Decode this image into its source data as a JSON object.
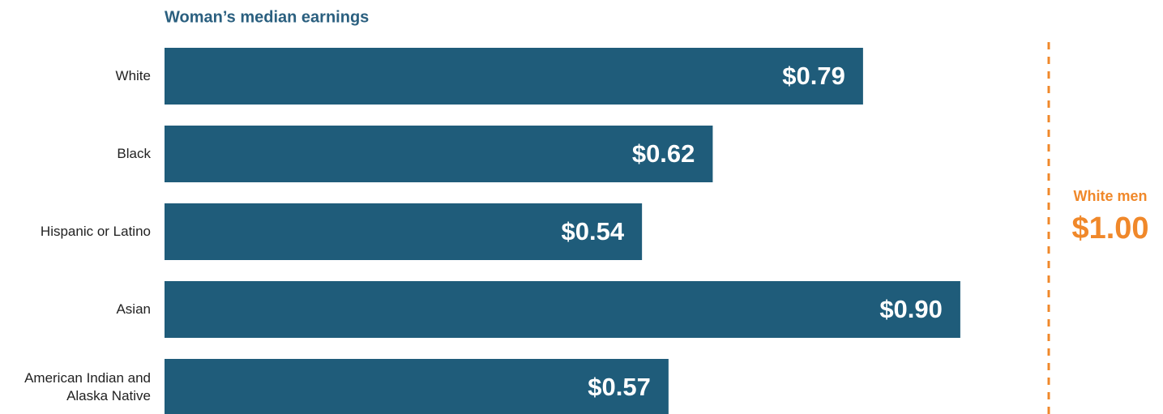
{
  "chart_data": {
    "type": "bar",
    "orientation": "horizontal",
    "title": "Woman’s median earnings",
    "categories": [
      "White",
      "Black",
      "Hispanic or Latino",
      "Asian",
      "American Indian and Alaska Native"
    ],
    "values": [
      0.79,
      0.62,
      0.54,
      0.9,
      0.57
    ],
    "value_labels": [
      "$0.79",
      "$0.62",
      "$0.54",
      "$0.90",
      "$0.57"
    ],
    "color": "#1f5c7a",
    "reference": {
      "name": "White men",
      "value": 1.0,
      "label": "$1.00",
      "color": "#f0882a"
    }
  }
}
